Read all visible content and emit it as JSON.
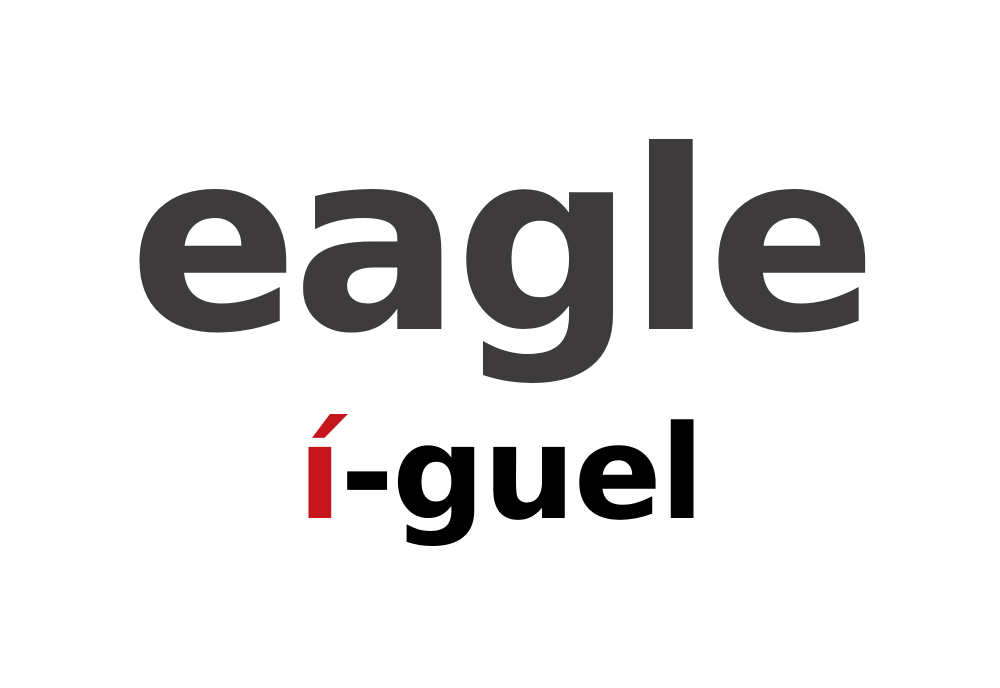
{
  "word": {
    "main": "eagle",
    "color": "#3d3b3c"
  },
  "pronunciation": {
    "stressed": "í",
    "rest": "-guel",
    "stressed_color": "#c4161c",
    "rest_color": "#000000"
  }
}
